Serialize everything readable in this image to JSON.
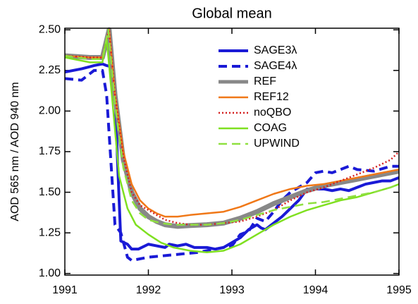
{
  "chart_data": {
    "type": "line",
    "title": "Global mean",
    "y_label": "AOD 565 nm / AOD 940 nm",
    "xlim": [
      1991,
      1995
    ],
    "xticks": [
      1991,
      1992,
      1993,
      1994,
      1995
    ],
    "ylim": [
      0.99,
      2.51
    ],
    "yticks": [
      {
        "value": 1.0,
        "label": "1.00"
      },
      {
        "value": 1.25,
        "label": "1.25"
      },
      {
        "value": 1.5,
        "label": "1.50"
      },
      {
        "value": 1.75,
        "label": "1.75"
      },
      {
        "value": 2.0,
        "label": "2.00"
      },
      {
        "value": 2.25,
        "label": "2.25"
      },
      {
        "value": 2.5,
        "label": "2.50"
      }
    ],
    "legend": "top-right",
    "series": [
      {
        "name": "SAGE3λ",
        "color": "#1a1ad6",
        "style": "solid",
        "linewidth": 4,
        "x": [
          1991.0,
          1991.2,
          1991.35,
          1991.45,
          1991.5,
          1991.58,
          1991.6,
          1991.63,
          1991.67,
          1991.75,
          1991.8,
          1991.88,
          1992.0,
          1992.1,
          1992.2,
          1992.25,
          1992.35,
          1992.45,
          1992.55,
          1992.7,
          1992.8,
          1992.9,
          1993.0,
          1993.1,
          1993.2,
          1993.3,
          1993.35,
          1993.4,
          1993.5,
          1993.6,
          1993.7,
          1993.8,
          1993.9,
          1994.0,
          1994.1,
          1994.2,
          1994.3,
          1994.4,
          1994.5,
          1994.6,
          1994.7,
          1994.8,
          1994.9,
          1995.0
        ],
        "values": [
          2.24,
          2.26,
          2.28,
          2.29,
          2.28,
          2.27,
          2.15,
          1.7,
          1.2,
          1.18,
          1.15,
          1.15,
          1.18,
          1.17,
          1.16,
          1.18,
          1.17,
          1.18,
          1.16,
          1.16,
          1.15,
          1.16,
          1.19,
          1.22,
          1.27,
          1.3,
          1.28,
          1.27,
          1.31,
          1.35,
          1.4,
          1.45,
          1.52,
          1.52,
          1.52,
          1.51,
          1.52,
          1.51,
          1.53,
          1.55,
          1.56,
          1.57,
          1.57,
          1.59
        ]
      },
      {
        "name": "SAGE4λ",
        "color": "#1a1ad6",
        "style": "dashed",
        "linewidth": 4,
        "x": [
          1991.0,
          1991.2,
          1991.35,
          1991.45,
          1991.5,
          1991.55,
          1991.6,
          1991.67,
          1991.75,
          1991.8,
          1992.0,
          1992.2,
          1992.4,
          1992.6,
          1992.8,
          1993.0,
          1993.1,
          1993.2,
          1993.3,
          1993.4,
          1993.5,
          1993.6,
          1993.7,
          1993.8,
          1993.9,
          1994.0,
          1994.1,
          1994.2,
          1994.3,
          1994.4,
          1994.5,
          1994.7,
          1994.9,
          1995.0
        ],
        "values": [
          2.2,
          2.19,
          2.25,
          2.25,
          2.1,
          1.7,
          1.3,
          1.25,
          1.1,
          1.08,
          1.1,
          1.11,
          1.12,
          1.13,
          1.15,
          1.17,
          1.24,
          1.26,
          1.34,
          1.32,
          1.38,
          1.45,
          1.5,
          1.53,
          1.56,
          1.62,
          1.63,
          1.62,
          1.64,
          1.66,
          1.64,
          1.63,
          1.66,
          1.66
        ]
      },
      {
        "name": "REF",
        "color": "#888888",
        "style": "solid",
        "linewidth": 7,
        "x": [
          1991.0,
          1991.3,
          1991.45,
          1991.53,
          1991.6,
          1991.7,
          1991.8,
          1991.9,
          1992.0,
          1992.1,
          1992.2,
          1992.35,
          1992.5,
          1992.7,
          1992.9,
          1993.1,
          1993.3,
          1993.5,
          1993.7,
          1993.9,
          1994.1,
          1994.3,
          1994.5,
          1994.7,
          1994.9,
          1995.0
        ],
        "values": [
          2.34,
          2.33,
          2.33,
          2.5,
          2.1,
          1.7,
          1.5,
          1.4,
          1.35,
          1.32,
          1.3,
          1.29,
          1.295,
          1.3,
          1.31,
          1.34,
          1.38,
          1.43,
          1.47,
          1.51,
          1.54,
          1.56,
          1.58,
          1.6,
          1.62,
          1.63
        ]
      },
      {
        "name": "REF12",
        "color": "#f07818",
        "style": "solid",
        "linewidth": 2.5,
        "x": [
          1991.0,
          1991.3,
          1991.45,
          1991.53,
          1991.6,
          1991.7,
          1991.8,
          1991.9,
          1992.0,
          1992.1,
          1992.2,
          1992.35,
          1992.5,
          1992.7,
          1992.9,
          1993.1,
          1993.3,
          1993.5,
          1993.7,
          1993.9,
          1994.1,
          1994.3,
          1994.5,
          1994.7,
          1994.9,
          1995.0
        ],
        "values": [
          2.34,
          2.33,
          2.33,
          2.5,
          2.1,
          1.75,
          1.55,
          1.45,
          1.4,
          1.37,
          1.35,
          1.35,
          1.36,
          1.37,
          1.38,
          1.41,
          1.45,
          1.49,
          1.52,
          1.54,
          1.55,
          1.57,
          1.59,
          1.61,
          1.63,
          1.64
        ]
      },
      {
        "name": "noQBO",
        "color": "#d42020",
        "style": "dotted",
        "linewidth": 2.5,
        "x": [
          1991.0,
          1991.3,
          1991.45,
          1991.53,
          1991.6,
          1991.7,
          1991.8,
          1991.9,
          1992.0,
          1992.1,
          1992.2,
          1992.35,
          1992.5,
          1992.7,
          1992.9,
          1993.1,
          1993.3,
          1993.5,
          1993.7,
          1993.9,
          1994.1,
          1994.3,
          1994.5,
          1994.7,
          1994.9,
          1995.0
        ],
        "values": [
          2.34,
          2.33,
          2.33,
          2.5,
          2.1,
          1.72,
          1.5,
          1.42,
          1.39,
          1.36,
          1.33,
          1.31,
          1.3,
          1.3,
          1.31,
          1.32,
          1.35,
          1.39,
          1.45,
          1.5,
          1.53,
          1.57,
          1.61,
          1.65,
          1.7,
          1.75
        ]
      },
      {
        "name": "COAG",
        "color": "#7fe020",
        "style": "solid",
        "linewidth": 2.5,
        "x": [
          1991.0,
          1991.3,
          1991.45,
          1991.5,
          1991.58,
          1991.65,
          1991.75,
          1991.85,
          1992.0,
          1992.15,
          1992.3,
          1992.5,
          1992.7,
          1992.9,
          1993.1,
          1993.3,
          1993.5,
          1993.7,
          1993.9,
          1994.1,
          1994.3,
          1994.5,
          1994.7,
          1994.9,
          1995.0
        ],
        "values": [
          2.33,
          2.3,
          2.3,
          2.45,
          2.0,
          1.6,
          1.4,
          1.3,
          1.24,
          1.19,
          1.16,
          1.14,
          1.13,
          1.14,
          1.18,
          1.24,
          1.3,
          1.35,
          1.39,
          1.42,
          1.45,
          1.47,
          1.5,
          1.53,
          1.55
        ]
      },
      {
        "name": "UPWIND",
        "color": "#8fe040",
        "style": "dashed",
        "linewidth": 2.5,
        "x": [
          1991.0,
          1991.3,
          1991.45,
          1991.52,
          1991.6,
          1991.7,
          1991.8,
          1991.9,
          1992.0,
          1992.15,
          1992.3,
          1992.5,
          1992.7,
          1992.9,
          1993.1,
          1993.3,
          1993.5,
          1993.7,
          1993.9,
          1994.1,
          1994.3,
          1994.5,
          1994.7,
          1994.9,
          1995.0
        ],
        "values": [
          2.34,
          2.32,
          2.32,
          2.5,
          2.05,
          1.65,
          1.45,
          1.37,
          1.33,
          1.31,
          1.3,
          1.3,
          1.3,
          1.31,
          1.33,
          1.36,
          1.39,
          1.41,
          1.43,
          1.44,
          1.46,
          1.48,
          1.5,
          1.53,
          1.55
        ]
      }
    ]
  }
}
